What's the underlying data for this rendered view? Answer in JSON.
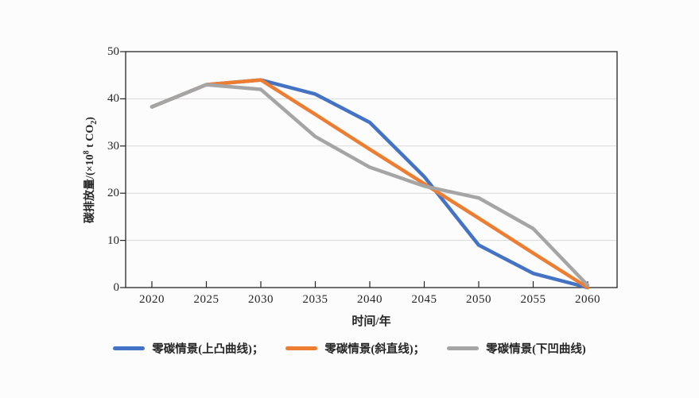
{
  "figure": {
    "ylabel": {
      "pre": "碳排放量/(×10",
      "sup": "8",
      "mid": " t CO",
      "sub": "2",
      "post": ")"
    }
  },
  "chart_data": {
    "type": "line",
    "title": "",
    "xlabel": "时间/年",
    "ylabel": "碳排放量/(×10^8 t CO2)",
    "x": [
      2020,
      2025,
      2030,
      2035,
      2040,
      2045,
      2050,
      2055,
      2060
    ],
    "xticks": [
      2020,
      2025,
      2030,
      2035,
      2040,
      2045,
      2050,
      2055,
      2060
    ],
    "yticks": [
      0,
      10,
      20,
      30,
      40,
      50
    ],
    "ylim": [
      0,
      50
    ],
    "grid": "horizontal",
    "legend_position": "bottom",
    "series": [
      {
        "name": "零碳情景(上凸曲线)",
        "color": "#4472C4",
        "values": [
          38.3,
          43,
          44,
          41,
          35,
          23.5,
          9,
          3,
          0
        ]
      },
      {
        "name": "零碳情景(斜直线)",
        "color": "#ED7D31",
        "values": [
          38.3,
          43,
          44,
          36.7,
          29.3,
          22,
          14.7,
          7.3,
          0
        ]
      },
      {
        "name": "零碳情景(下凹曲线)",
        "color": "#A5A5A5",
        "values": [
          38.3,
          43,
          42,
          32,
          25.5,
          21.5,
          19,
          12.5,
          0.5
        ]
      }
    ],
    "legend": [
      {
        "label": "零碳情景(上凸曲线)；",
        "color": "#4472C4"
      },
      {
        "label": "零碳情景(斜直线)；",
        "color": "#ED7D31"
      },
      {
        "label": "零碳情景(下凹曲线)",
        "color": "#A5A5A5"
      }
    ],
    "colors": {
      "axis": "#262626",
      "grid": "#D9D9D9",
      "background": "#fcfcfc"
    }
  }
}
